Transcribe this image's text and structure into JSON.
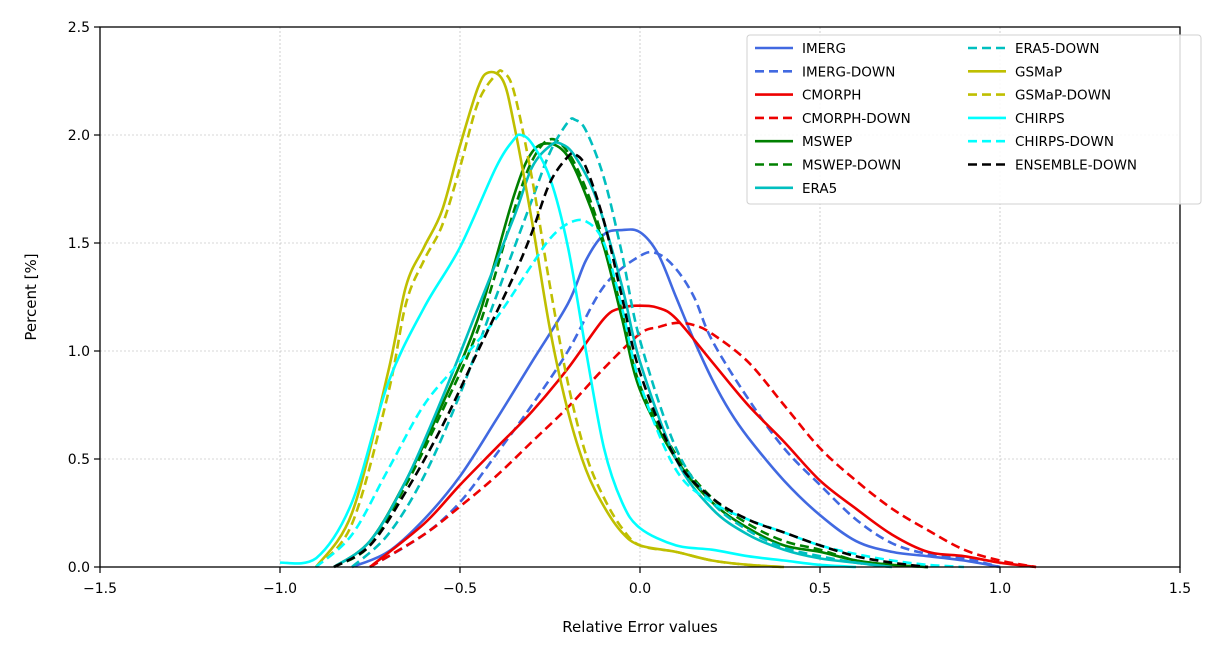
{
  "chart_data": {
    "type": "line",
    "title": "",
    "xlabel": "Relative Error values",
    "ylabel": "Percent [%]",
    "xlim": [
      -1.5,
      1.5
    ],
    "ylim": [
      0.0,
      2.5
    ],
    "xticks": [
      -1.5,
      -1.0,
      -0.5,
      0.0,
      0.5,
      1.0,
      1.5
    ],
    "xtick_labels": [
      "−1.5",
      "−1.0",
      "−0.5",
      "0.0",
      "0.5",
      "1.0",
      "1.5"
    ],
    "yticks": [
      0.0,
      0.5,
      1.0,
      1.5,
      2.0,
      2.5
    ],
    "ytick_labels": [
      "0.0",
      "0.5",
      "1.0",
      "1.5",
      "2.0",
      "2.5"
    ],
    "grid": true,
    "legend_position": "top-right",
    "legend_columns": 2,
    "series": [
      {
        "name": "IMERG",
        "color": "#4169e1",
        "dash": "solid",
        "x": [
          -0.8,
          -0.7,
          -0.6,
          -0.5,
          -0.4,
          -0.3,
          -0.2,
          -0.15,
          -0.1,
          -0.05,
          0.0,
          0.05,
          0.1,
          0.15,
          0.2,
          0.25,
          0.3,
          0.4,
          0.5,
          0.6,
          0.7,
          0.8,
          0.9,
          1.0
        ],
        "y": [
          0.0,
          0.07,
          0.22,
          0.42,
          0.68,
          0.95,
          1.22,
          1.42,
          1.54,
          1.56,
          1.55,
          1.45,
          1.25,
          1.05,
          0.87,
          0.72,
          0.6,
          0.4,
          0.24,
          0.12,
          0.07,
          0.05,
          0.03,
          0.0
        ]
      },
      {
        "name": "IMERG-DOWN",
        "color": "#4169e1",
        "dash": "dashed",
        "x": [
          -0.75,
          -0.6,
          -0.5,
          -0.4,
          -0.3,
          -0.2,
          -0.1,
          0.0,
          0.05,
          0.1,
          0.15,
          0.2,
          0.3,
          0.4,
          0.5,
          0.6,
          0.7,
          0.8,
          0.9,
          1.0
        ],
        "y": [
          0.0,
          0.15,
          0.3,
          0.52,
          0.75,
          1.0,
          1.3,
          1.44,
          1.45,
          1.38,
          1.25,
          1.05,
          0.78,
          0.55,
          0.38,
          0.22,
          0.11,
          0.06,
          0.04,
          0.0
        ]
      },
      {
        "name": "CMORPH",
        "color": "#ee0000",
        "dash": "solid",
        "x": [
          -0.75,
          -0.6,
          -0.5,
          -0.4,
          -0.3,
          -0.2,
          -0.1,
          -0.05,
          0.0,
          0.05,
          0.1,
          0.2,
          0.3,
          0.4,
          0.5,
          0.6,
          0.7,
          0.8,
          0.9,
          1.0,
          1.1
        ],
        "y": [
          0.0,
          0.2,
          0.38,
          0.55,
          0.72,
          0.92,
          1.15,
          1.2,
          1.21,
          1.2,
          1.15,
          0.95,
          0.75,
          0.58,
          0.4,
          0.27,
          0.15,
          0.07,
          0.05,
          0.02,
          0.0
        ]
      },
      {
        "name": "CMORPH-DOWN",
        "color": "#ee0000",
        "dash": "dashed",
        "x": [
          -0.75,
          -0.6,
          -0.5,
          -0.4,
          -0.3,
          -0.2,
          -0.1,
          0.0,
          0.05,
          0.1,
          0.15,
          0.2,
          0.3,
          0.4,
          0.5,
          0.6,
          0.7,
          0.8,
          0.9,
          1.0,
          1.1
        ],
        "y": [
          0.0,
          0.15,
          0.28,
          0.42,
          0.58,
          0.74,
          0.92,
          1.08,
          1.11,
          1.13,
          1.12,
          1.08,
          0.95,
          0.75,
          0.55,
          0.4,
          0.27,
          0.17,
          0.08,
          0.03,
          0.0
        ]
      },
      {
        "name": "MSWEP",
        "color": "#008000",
        "dash": "solid",
        "x": [
          -0.85,
          -0.75,
          -0.65,
          -0.55,
          -0.45,
          -0.35,
          -0.3,
          -0.25,
          -0.2,
          -0.15,
          -0.1,
          -0.05,
          0.0,
          0.1,
          0.2,
          0.3,
          0.4,
          0.5,
          0.6,
          0.7,
          0.8
        ],
        "y": [
          0.0,
          0.12,
          0.4,
          0.75,
          1.15,
          1.72,
          1.92,
          1.96,
          1.9,
          1.72,
          1.48,
          1.15,
          0.82,
          0.5,
          0.3,
          0.18,
          0.1,
          0.07,
          0.03,
          0.01,
          0.0
        ]
      },
      {
        "name": "MSWEP-DOWN",
        "color": "#008000",
        "dash": "dashed",
        "x": [
          -0.85,
          -0.75,
          -0.65,
          -0.55,
          -0.45,
          -0.35,
          -0.3,
          -0.25,
          -0.2,
          -0.15,
          -0.1,
          -0.05,
          0.0,
          0.1,
          0.2,
          0.3,
          0.4,
          0.5,
          0.6,
          0.7,
          0.8
        ],
        "y": [
          0.0,
          0.1,
          0.38,
          0.72,
          1.1,
          1.65,
          1.88,
          1.98,
          1.92,
          1.75,
          1.5,
          1.18,
          0.84,
          0.52,
          0.32,
          0.2,
          0.12,
          0.08,
          0.03,
          0.01,
          0.0
        ]
      },
      {
        "name": "ERA5",
        "color": "#00bfbf",
        "dash": "solid",
        "x": [
          -0.85,
          -0.75,
          -0.65,
          -0.55,
          -0.45,
          -0.35,
          -0.3,
          -0.25,
          -0.22,
          -0.18,
          -0.12,
          -0.05,
          0.0,
          0.1,
          0.2,
          0.3,
          0.4,
          0.5,
          0.6,
          0.7
        ],
        "y": [
          0.0,
          0.12,
          0.4,
          0.78,
          1.2,
          1.62,
          1.85,
          1.95,
          1.96,
          1.9,
          1.7,
          1.3,
          0.95,
          0.5,
          0.27,
          0.15,
          0.08,
          0.04,
          0.02,
          0.0
        ]
      },
      {
        "name": "ERA5-DOWN",
        "color": "#00bfbf",
        "dash": "dashed",
        "x": [
          -0.8,
          -0.7,
          -0.6,
          -0.5,
          -0.4,
          -0.3,
          -0.25,
          -0.2,
          -0.18,
          -0.15,
          -0.1,
          -0.05,
          0.0,
          0.1,
          0.2,
          0.3,
          0.4,
          0.5,
          0.6,
          0.7
        ],
        "y": [
          0.0,
          0.15,
          0.42,
          0.8,
          1.25,
          1.7,
          1.92,
          2.06,
          2.07,
          2.02,
          1.8,
          1.45,
          1.05,
          0.55,
          0.3,
          0.17,
          0.09,
          0.05,
          0.02,
          0.0
        ]
      },
      {
        "name": "GSMaP",
        "color": "#bfbf00",
        "dash": "solid",
        "x": [
          -0.9,
          -0.8,
          -0.7,
          -0.65,
          -0.6,
          -0.55,
          -0.5,
          -0.45,
          -0.42,
          -0.38,
          -0.35,
          -0.3,
          -0.25,
          -0.2,
          -0.15,
          -0.1,
          -0.05,
          0.0,
          0.1,
          0.2,
          0.3,
          0.4
        ],
        "y": [
          0.0,
          0.25,
          0.9,
          1.3,
          1.48,
          1.65,
          1.95,
          2.22,
          2.29,
          2.25,
          2.05,
          1.6,
          1.1,
          0.72,
          0.45,
          0.28,
          0.16,
          0.1,
          0.07,
          0.03,
          0.01,
          0.0
        ]
      },
      {
        "name": "GSMaP-DOWN",
        "color": "#bfbf00",
        "dash": "dashed",
        "x": [
          -0.9,
          -0.8,
          -0.7,
          -0.65,
          -0.6,
          -0.55,
          -0.5,
          -0.45,
          -0.4,
          -0.38,
          -0.35,
          -0.3,
          -0.25,
          -0.2,
          -0.15,
          -0.1,
          -0.05,
          0.0,
          0.1,
          0.2,
          0.3,
          0.4
        ],
        "y": [
          0.0,
          0.2,
          0.8,
          1.22,
          1.42,
          1.58,
          1.85,
          2.15,
          2.28,
          2.29,
          2.2,
          1.8,
          1.3,
          0.85,
          0.52,
          0.32,
          0.18,
          0.1,
          0.07,
          0.03,
          0.01,
          0.0
        ]
      },
      {
        "name": "CHIRPS",
        "color": "#00ffff",
        "dash": "solid",
        "x": [
          -1.0,
          -0.9,
          -0.8,
          -0.7,
          -0.6,
          -0.5,
          -0.4,
          -0.35,
          -0.33,
          -0.3,
          -0.25,
          -0.2,
          -0.15,
          -0.1,
          -0.05,
          0.0,
          0.1,
          0.2,
          0.3,
          0.4,
          0.5,
          0.6
        ],
        "y": [
          0.02,
          0.04,
          0.3,
          0.85,
          1.2,
          1.48,
          1.85,
          1.98,
          2.0,
          1.96,
          1.8,
          1.48,
          1.0,
          0.55,
          0.3,
          0.18,
          0.1,
          0.08,
          0.05,
          0.03,
          0.01,
          0.0
        ]
      },
      {
        "name": "CHIRPS-DOWN",
        "color": "#00ffff",
        "dash": "dashed",
        "x": [
          -0.9,
          -0.8,
          -0.7,
          -0.6,
          -0.5,
          -0.4,
          -0.3,
          -0.25,
          -0.2,
          -0.15,
          -0.1,
          -0.05,
          0.0,
          0.1,
          0.2,
          0.3,
          0.4,
          0.5,
          0.6,
          0.7,
          0.8,
          0.9
        ],
        "y": [
          0.0,
          0.15,
          0.45,
          0.75,
          0.95,
          1.15,
          1.4,
          1.52,
          1.59,
          1.6,
          1.5,
          1.2,
          0.85,
          0.45,
          0.3,
          0.22,
          0.16,
          0.1,
          0.06,
          0.03,
          0.01,
          0.0
        ]
      },
      {
        "name": "ENSEMBLE-DOWN",
        "color": "#000000",
        "dash": "dashed",
        "x": [
          -0.85,
          -0.75,
          -0.65,
          -0.55,
          -0.45,
          -0.35,
          -0.3,
          -0.25,
          -0.2,
          -0.18,
          -0.15,
          -0.1,
          -0.05,
          0.0,
          0.1,
          0.2,
          0.3,
          0.4,
          0.5,
          0.6,
          0.7,
          0.8
        ],
        "y": [
          0.0,
          0.1,
          0.35,
          0.65,
          1.0,
          1.35,
          1.55,
          1.78,
          1.9,
          1.91,
          1.85,
          1.6,
          1.25,
          0.9,
          0.5,
          0.32,
          0.22,
          0.16,
          0.1,
          0.05,
          0.02,
          0.0
        ]
      }
    ]
  }
}
